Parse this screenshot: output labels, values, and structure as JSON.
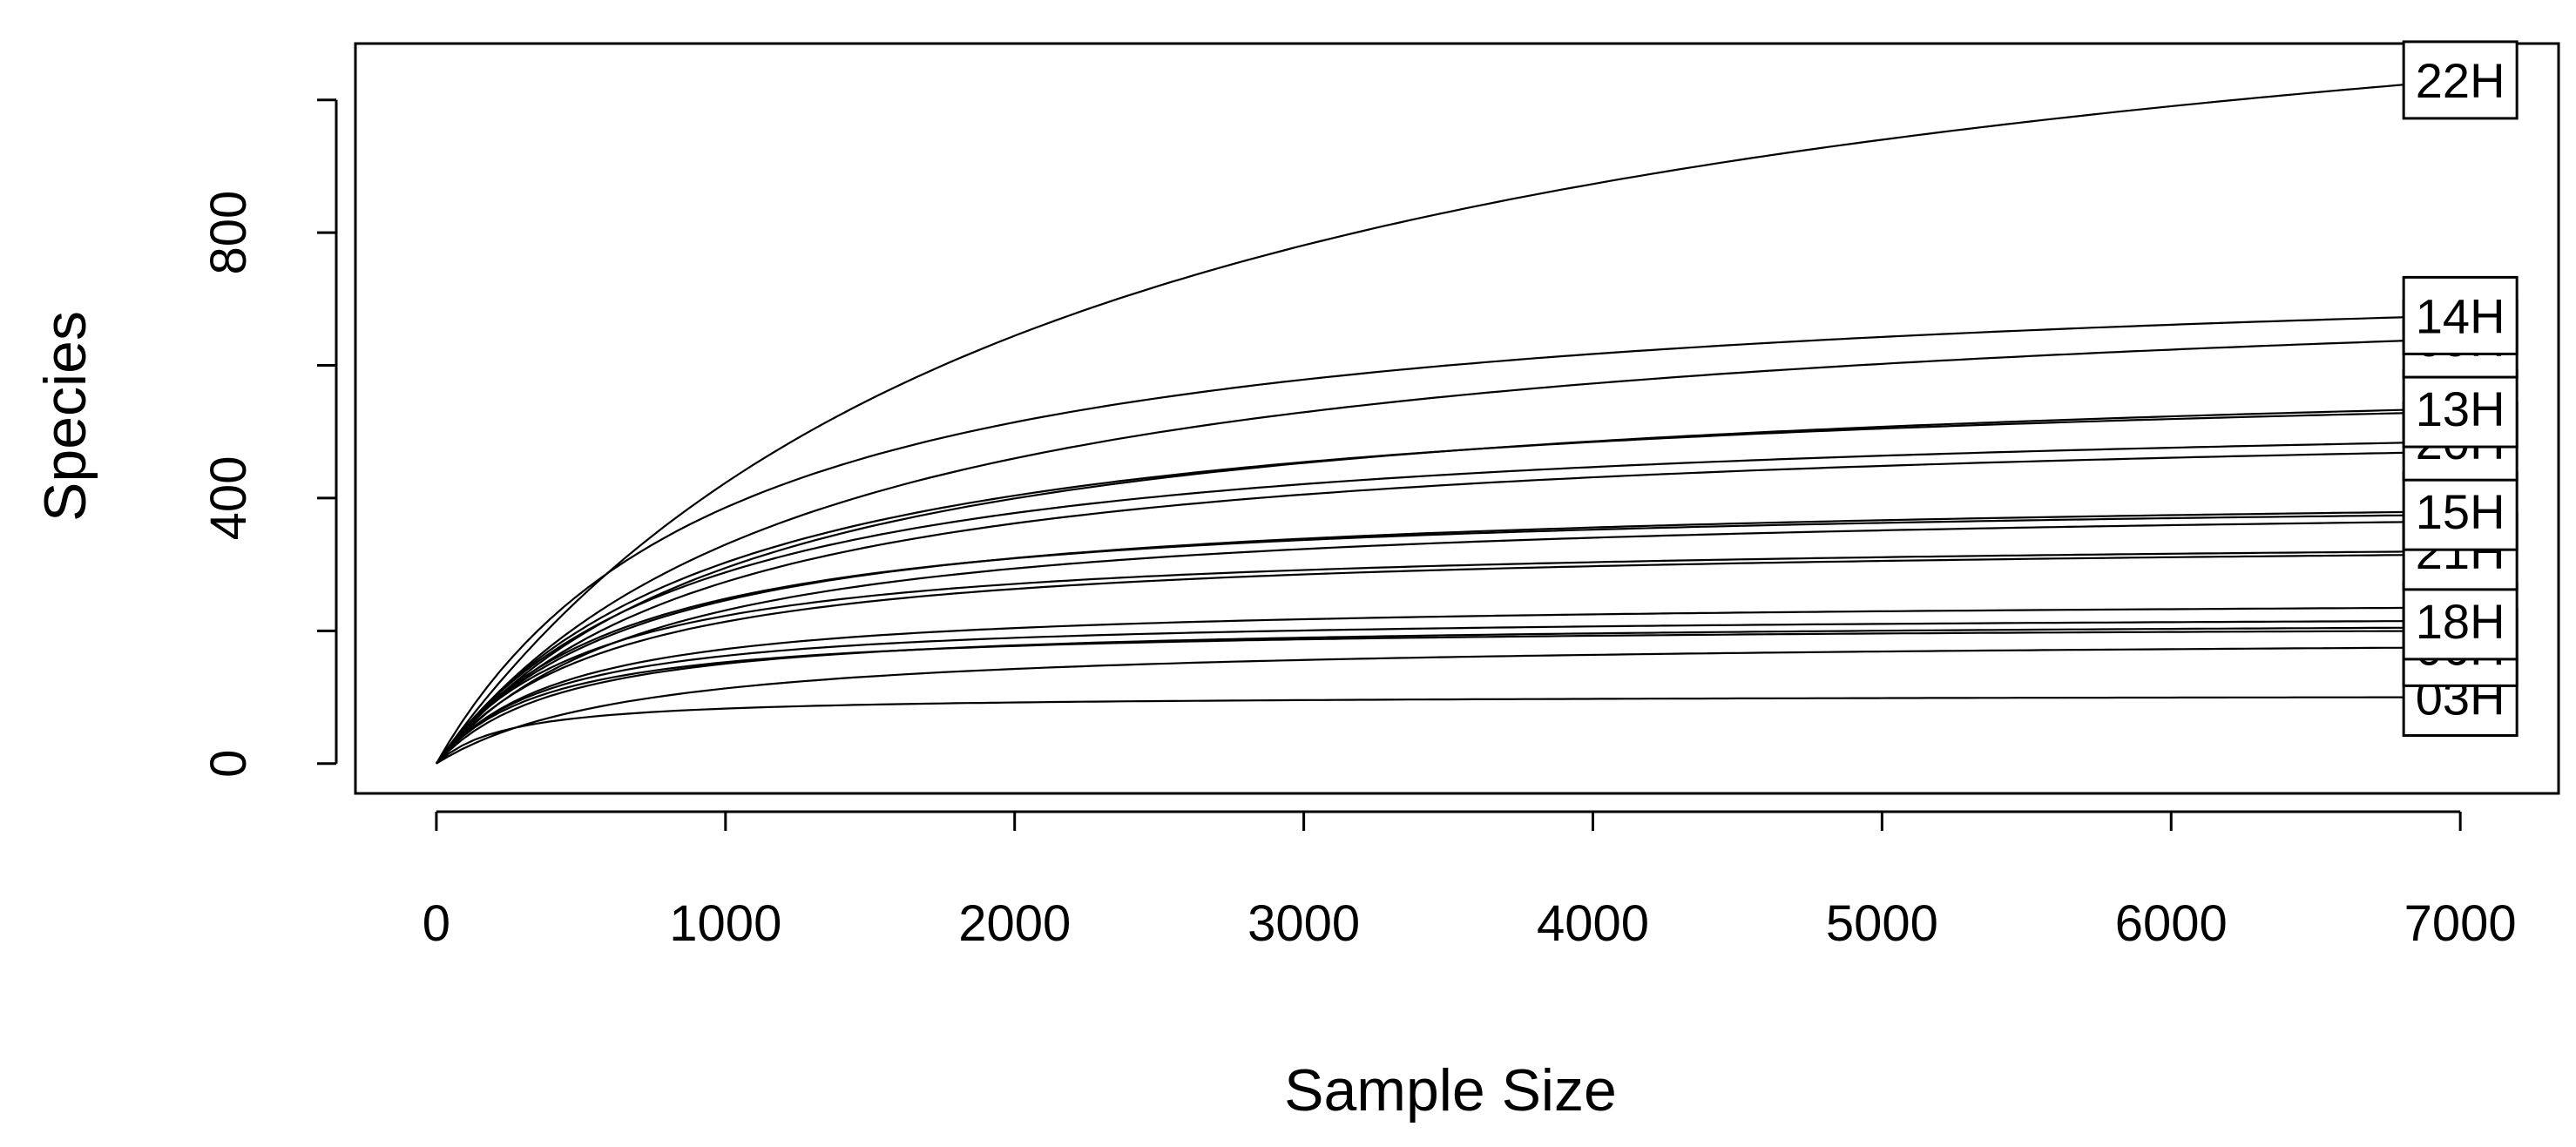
{
  "chart_data": {
    "type": "line",
    "title": "",
    "xlabel": "Sample Size",
    "ylabel": "Species",
    "xlim": [
      -280,
      7340
    ],
    "ylim": [
      -45,
      1085
    ],
    "x_ticks": [
      0,
      1000,
      2000,
      3000,
      4000,
      5000,
      6000,
      7000
    ],
    "y_ticks": [
      0,
      200,
      400,
      600,
      800,
      1000
    ],
    "y_tick_labels": [
      "0",
      "",
      "400",
      "",
      "800",
      ""
    ],
    "grid": false,
    "legend": "none",
    "line_color": "#000000",
    "x_end": 7000,
    "series": [
      {
        "name": "22H",
        "final": 1030,
        "k": 2200,
        "labeled": true
      },
      {
        "name": "14H",
        "final": 675,
        "k": 1000,
        "labeled": true
      },
      {
        "name": "09H",
        "final": 640,
        "k": 1300,
        "labeled": true
      },
      {
        "name": "13H",
        "final": 535,
        "k": 1100,
        "labeled": true
      },
      {
        "name": "",
        "final": 530,
        "k": 1000,
        "labeled": false
      },
      {
        "name": "20H",
        "final": 485,
        "k": 900,
        "labeled": true
      },
      {
        "name": "",
        "final": 470,
        "k": 950,
        "labeled": false
      },
      {
        "name": "15H",
        "final": 380,
        "k": 700,
        "labeled": true
      },
      {
        "name": "",
        "final": 375,
        "k": 650,
        "labeled": false
      },
      {
        "name": "",
        "final": 365,
        "k": 750,
        "labeled": false
      },
      {
        "name": "21H",
        "final": 320,
        "k": 550,
        "labeled": true
      },
      {
        "name": "",
        "final": 315,
        "k": 600,
        "labeled": false
      },
      {
        "name": "",
        "final": 235,
        "k": 450,
        "labeled": false
      },
      {
        "name": "18H",
        "final": 215,
        "k": 400,
        "labeled": true
      },
      {
        "name": "",
        "final": 205,
        "k": 450,
        "labeled": false
      },
      {
        "name": "",
        "final": 200,
        "k": 380,
        "labeled": false
      },
      {
        "name": "06H",
        "final": 175,
        "k": 700,
        "labeled": true
      },
      {
        "name": "03H",
        "final": 100,
        "k": 250,
        "labeled": true
      }
    ]
  }
}
